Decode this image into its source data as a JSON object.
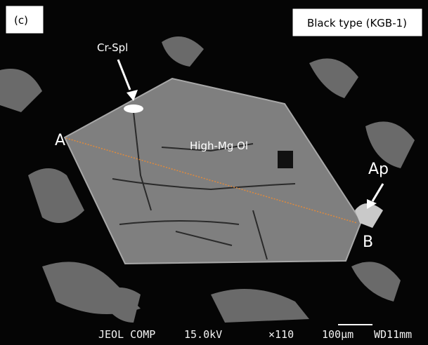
{
  "panel_label": "(c)",
  "sample_label": "Black type (KGB-1)",
  "annotations": {
    "cr_spl": "Cr-Spl",
    "mineral": "High-Mg Ol",
    "point_a": "A",
    "point_b": "B",
    "ap": "Ap"
  },
  "info_bar": {
    "instrument": "JEOL COMP",
    "voltage": "15.0kV",
    "magnification": "×110",
    "scale": "100µm",
    "working_distance": "WD11mm"
  }
}
